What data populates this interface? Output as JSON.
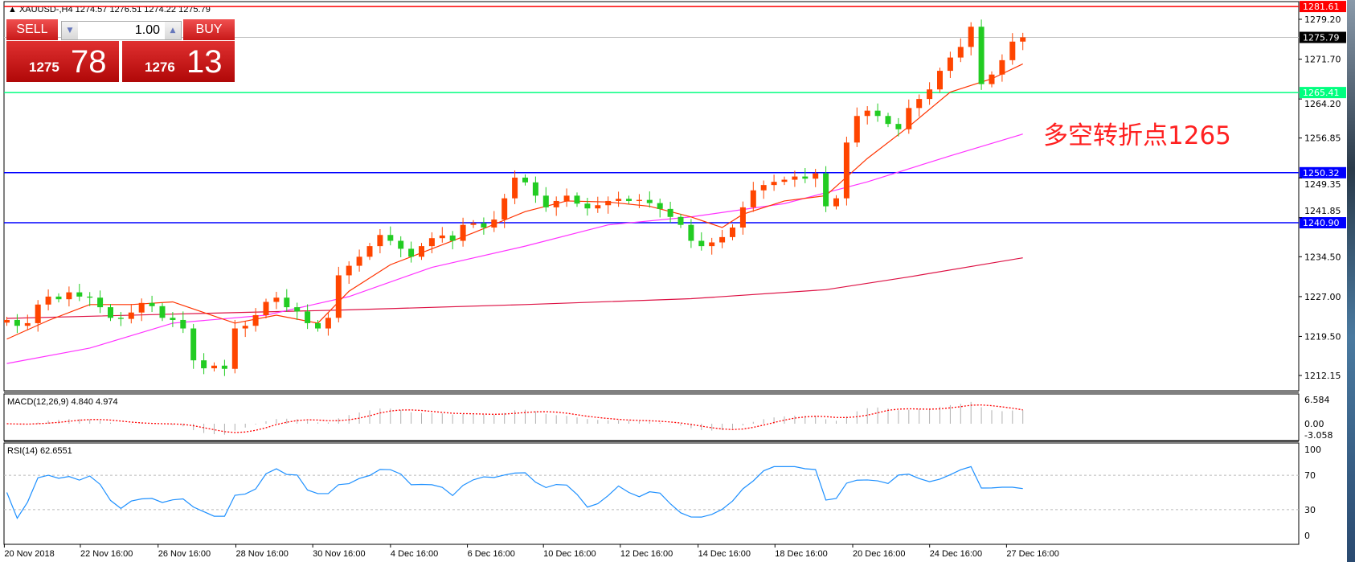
{
  "header": {
    "symbol": "XAUUSD-,H4",
    "ohlc": "1274.57 1276.51 1274.22 1275.79"
  },
  "trade_panel": {
    "sell_label": "SELL",
    "buy_label": "BUY",
    "lot": "1.00",
    "sell_price_small": "1275",
    "sell_price_big": "78",
    "buy_price_small": "1276",
    "buy_price_big": "13"
  },
  "annotation": "多空转折点1265",
  "colors": {
    "bull": "#ff4500",
    "bear": "#22cc22",
    "ma_fast": "#ff3300",
    "ma_mid": "#ff33ff",
    "ma_slow": "#dd1144",
    "rsi": "#1e90ff",
    "macd_signal": "#ff0000"
  },
  "chart_data": {
    "type": "candlestick",
    "price_axis": {
      "ticks": [
        "1279.20",
        "1271.70",
        "1264.20",
        "1256.85",
        "1249.35",
        "1241.85",
        "1234.50",
        "1227.00",
        "1219.50",
        "1212.15"
      ],
      "range": [
        1209.8,
        1282.5
      ]
    },
    "hlines": [
      {
        "value": "1281.61",
        "color": "#ff0000"
      },
      {
        "value": "1275.79",
        "color": "#c0c0c0",
        "label_bg": "#000000"
      },
      {
        "value": "1265.41",
        "color": "#00ff7f"
      },
      {
        "value": "1250.32",
        "color": "#0000ff"
      },
      {
        "value": "1240.90",
        "color": "#0000ff"
      }
    ],
    "time_labels": [
      "20 Nov 2018",
      "22 Nov 16:00",
      "26 Nov 16:00",
      "28 Nov 16:00",
      "30 Nov 16:00",
      "4 Dec 16:00",
      "6 Dec 16:00",
      "10 Dec 16:00",
      "12 Dec 16:00",
      "14 Dec 16:00",
      "18 Dec 16:00",
      "20 Dec 16:00",
      "24 Dec 16:00",
      "27 Dec 16:00"
    ],
    "closes": [
      1222.6,
      1221.5,
      1222,
      1225.5,
      1227,
      1226.5,
      1227.8,
      1227,
      1226.8,
      1225,
      1223,
      1222.8,
      1224,
      1225.8,
      1225.2,
      1223,
      1222.6,
      1221,
      1215,
      1213.5,
      1214,
      1213.4,
      1221,
      1221.5,
      1223.5,
      1226,
      1226.8,
      1225,
      1224.2,
      1222,
      1221,
      1223,
      1231,
      1232.8,
      1234.5,
      1236.5,
      1238.6,
      1237.5,
      1236,
      1234.5,
      1236.5,
      1238,
      1238.5,
      1237.5,
      1240.5,
      1240.8,
      1240,
      1241.5,
      1245.5,
      1249.4,
      1248.5,
      1246,
      1243.8,
      1245,
      1246,
      1244.5,
      1243.6,
      1244.2,
      1245,
      1245.4,
      1245,
      1245.2,
      1244.6,
      1243.5,
      1242,
      1240.5,
      1237.5,
      1236.5,
      1237.2,
      1238.2,
      1240,
      1243.8,
      1247,
      1248,
      1248.6,
      1249,
      1249.6,
      1249.2,
      1250.2,
      1244,
      1245.5,
      1256,
      1261,
      1262,
      1261,
      1259.5,
      1258.5,
      1262.5,
      1264.2,
      1266,
      1269.5,
      1272,
      1274,
      1277.8,
      1267,
      1268.8,
      1271.5,
      1275,
      1275.8
    ],
    "ma_fast_at_bar": [
      [
        0,
        1219
      ],
      [
        4,
        1222.5
      ],
      [
        8,
        1225.5
      ],
      [
        12,
        1225.5
      ],
      [
        16,
        1226
      ],
      [
        19,
        1224
      ],
      [
        22,
        1222
      ],
      [
        26,
        1223.5
      ],
      [
        30,
        1222
      ],
      [
        33,
        1228
      ],
      [
        37,
        1233
      ],
      [
        41,
        1236
      ],
      [
        45,
        1239
      ],
      [
        50,
        1243
      ],
      [
        54,
        1245
      ],
      [
        58,
        1244.8
      ],
      [
        62,
        1244
      ],
      [
        66,
        1242
      ],
      [
        69,
        1240
      ],
      [
        71,
        1242.5
      ],
      [
        75,
        1245
      ],
      [
        79,
        1246
      ],
      [
        83,
        1253
      ],
      [
        87,
        1259
      ],
      [
        91,
        1265.5
      ],
      [
        95,
        1268
      ],
      [
        98,
        1270.8
      ]
    ],
    "ma_mid_at_bar": [
      [
        0,
        1214.4
      ],
      [
        8,
        1217.3
      ],
      [
        16,
        1222
      ],
      [
        25,
        1223.5
      ],
      [
        33,
        1227
      ],
      [
        41,
        1232.5
      ],
      [
        50,
        1236.5
      ],
      [
        58,
        1240.5
      ],
      [
        66,
        1242
      ],
      [
        75,
        1244.5
      ],
      [
        83,
        1248.6
      ],
      [
        91,
        1253.5
      ],
      [
        98,
        1257.6
      ]
    ],
    "ma_slow_at_bar": [
      [
        0,
        1222.9
      ],
      [
        16,
        1223.7
      ],
      [
        33,
        1224.5
      ],
      [
        50,
        1225.5
      ],
      [
        66,
        1226.6
      ],
      [
        79,
        1228.3
      ],
      [
        87,
        1230.7
      ],
      [
        98,
        1234.3
      ]
    ],
    "macd": {
      "label": "MACD(12,26,9) 4.840 4.974",
      "ticks": [
        "6.584",
        "0.00",
        "-3.058"
      ],
      "range": [
        -3.058,
        6.584
      ]
    },
    "rsi": {
      "label": "RSI(14) 62.6551",
      "ticks": [
        "100",
        "70",
        "30",
        "0"
      ],
      "levels": [
        70,
        30
      ],
      "range": [
        0,
        100
      ]
    }
  }
}
